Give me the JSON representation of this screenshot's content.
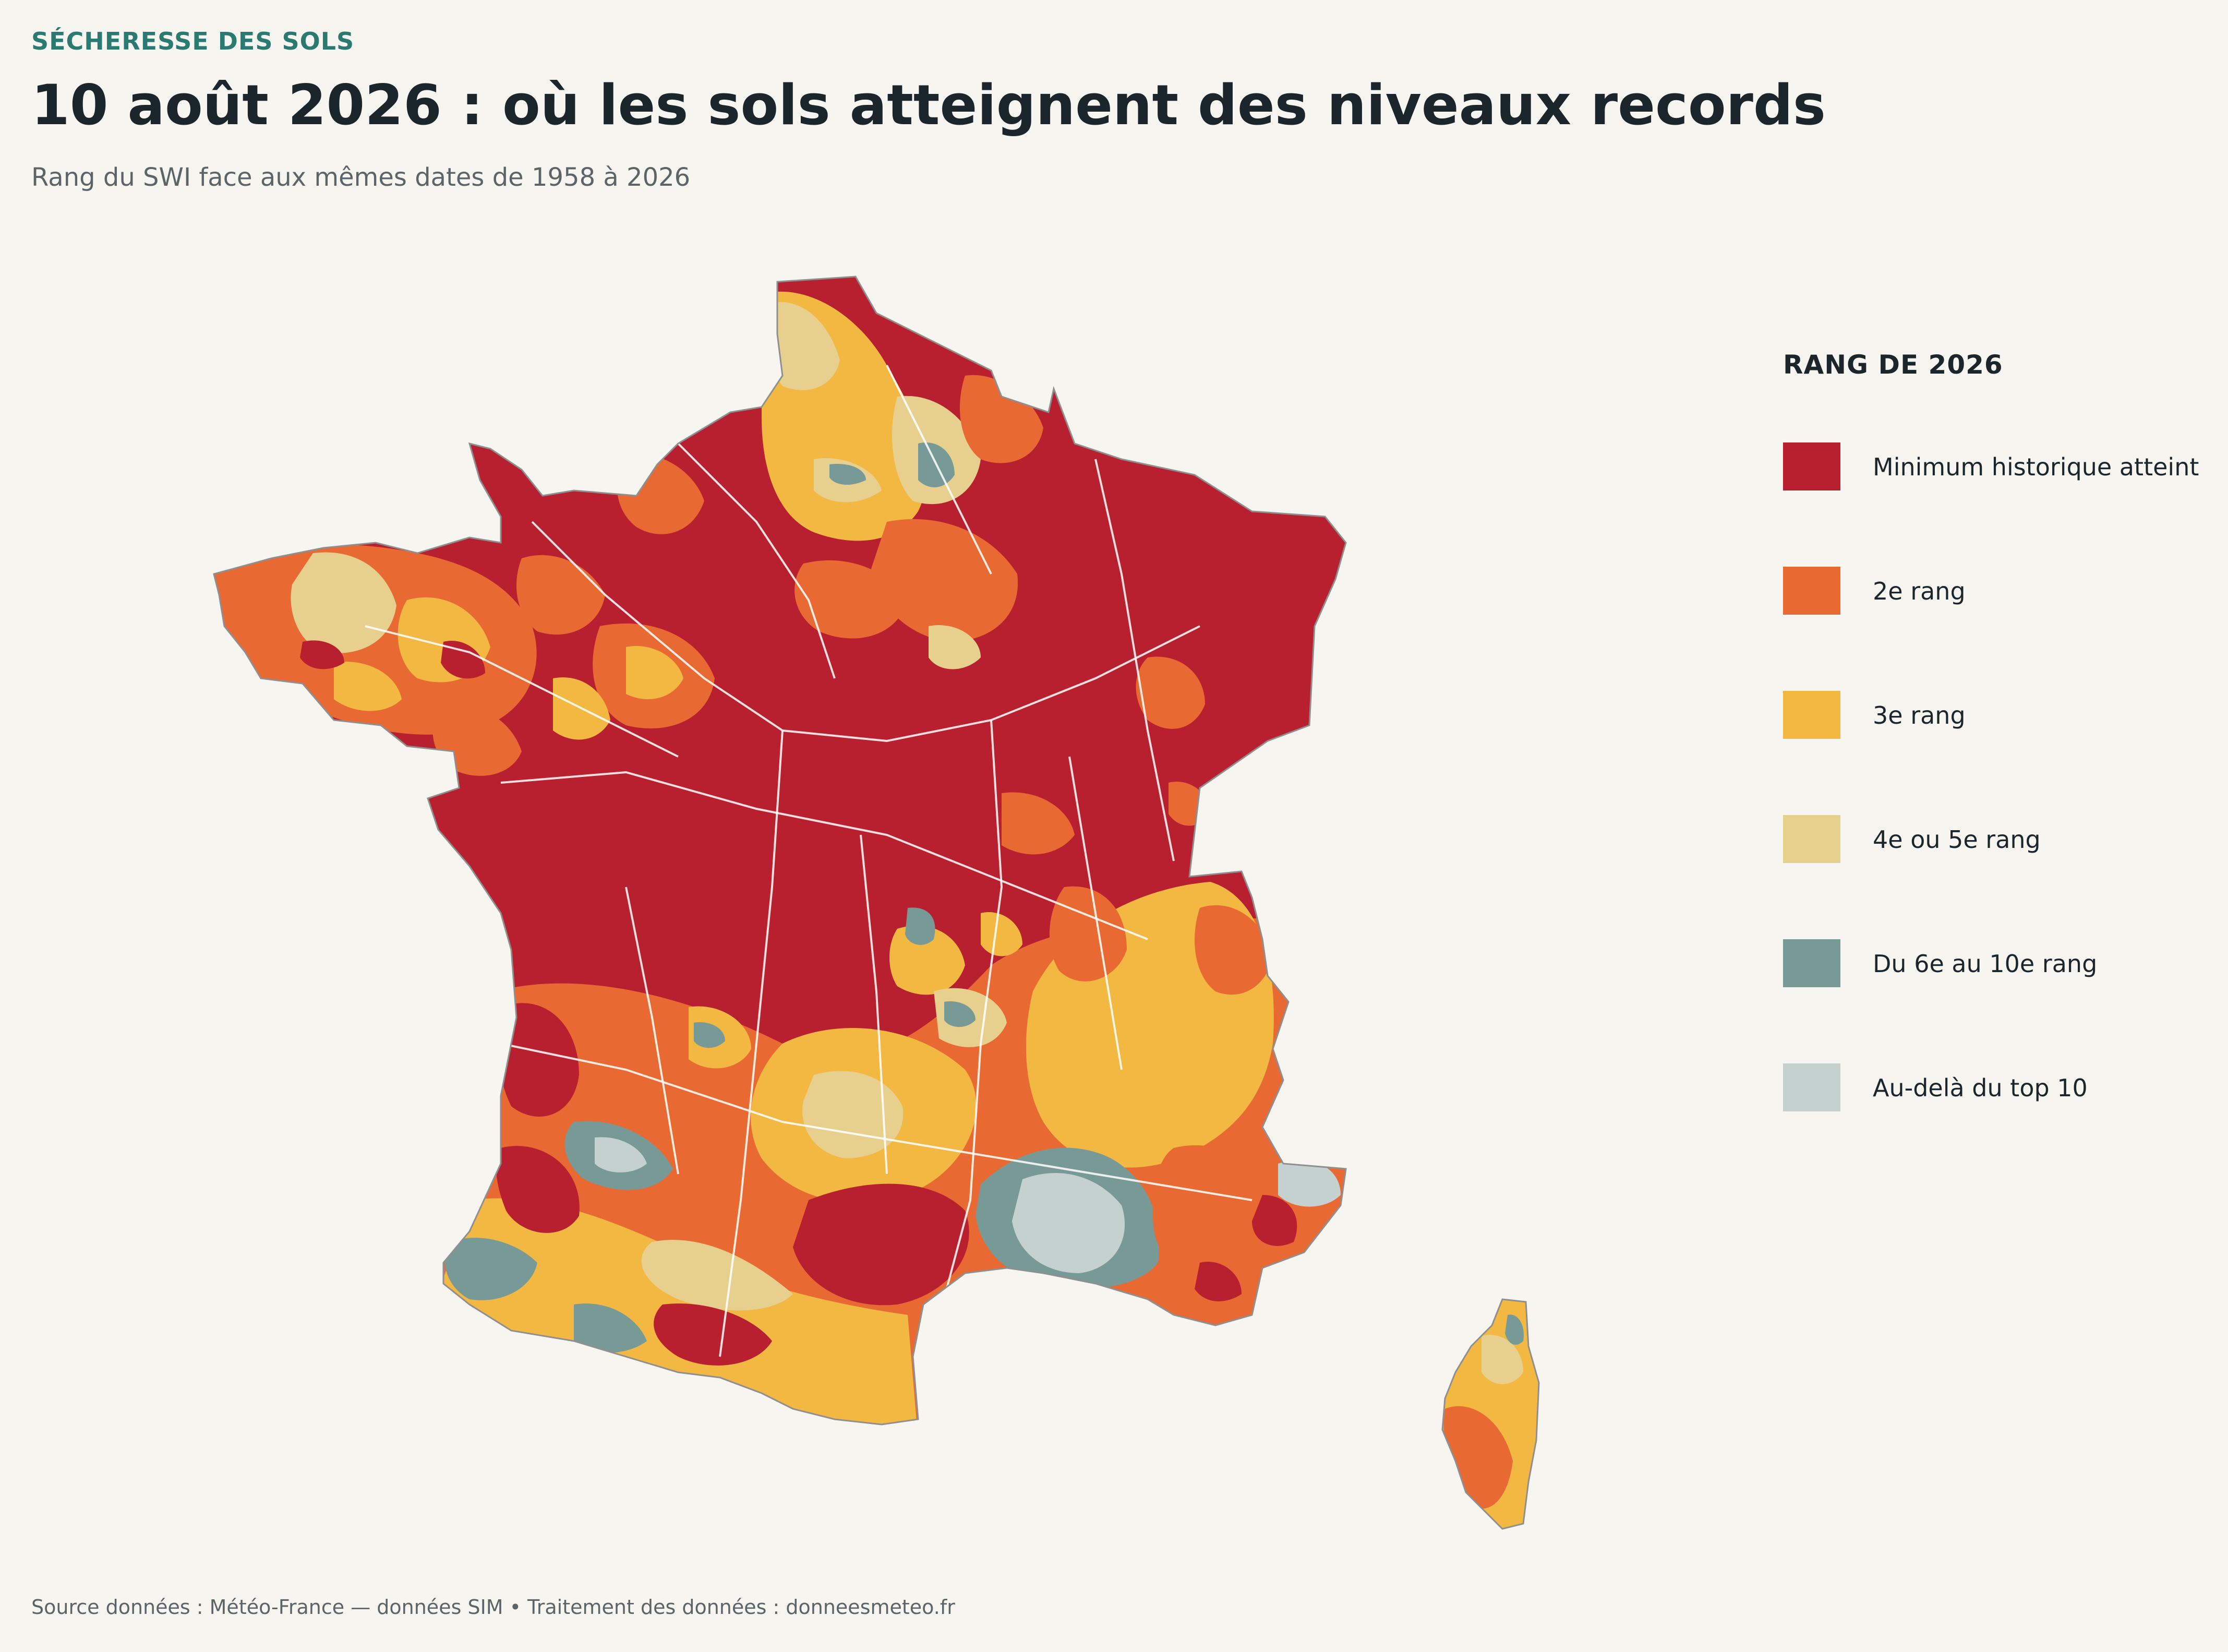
{
  "header": {
    "kicker": "SÉCHERESSE DES SOLS",
    "title": "10 août 2026 : où les sols atteignent des niveaux records",
    "subtitle": "Rang du SWI face aux mêmes dates de 1958 à 2026"
  },
  "legend": {
    "title": "RANG DE 2026",
    "items": [
      {
        "label": "Minimum historique atteint",
        "color": "#b8202f"
      },
      {
        "label": "2e rang",
        "color": "#e86a32"
      },
      {
        "label": "3e rang",
        "color": "#f2b842"
      },
      {
        "label": "4e ou 5e rang",
        "color": "#e7d08d"
      },
      {
        "label": "Du 6e au 10e rang",
        "color": "#789a96"
      },
      {
        "label": "Au-delà du top 10",
        "color": "#c5d1cf"
      }
    ]
  },
  "map": {
    "region": "France métropolitaine et Corse",
    "background_color": "#f6f5f0",
    "boundary_color": "#ffffff"
  },
  "footer": {
    "source": "Source données : Météo-France — données SIM  •  Traitement des données : donneesmeteo.fr"
  }
}
